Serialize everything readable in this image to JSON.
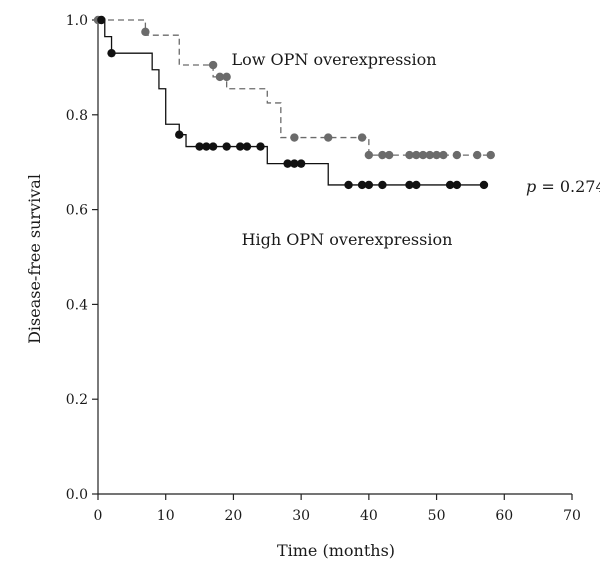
{
  "chart_data": {
    "type": "line",
    "subtype": "kaplan-meier",
    "title": "",
    "xlabel": "Time (months)",
    "ylabel": "Disease-free survival",
    "xlim": [
      0,
      70
    ],
    "ylim": [
      0,
      1.0
    ],
    "x_ticks": [
      0,
      10,
      20,
      30,
      40,
      50,
      60,
      70
    ],
    "y_ticks": [
      0.0,
      0.2,
      0.4,
      0.6,
      0.8,
      1.0
    ],
    "x_tick_labels": [
      "0",
      "10",
      "20",
      "30",
      "40",
      "50",
      "60",
      "70"
    ],
    "y_tick_labels": [
      "0.0",
      "0.2",
      "0.4",
      "0.6",
      "0.8",
      "1.0"
    ],
    "grid": false,
    "series": [
      {
        "name": "Low OPN overexpression",
        "color": "#6b6b6b",
        "line_style": "dashed",
        "step_x": [
          0,
          7,
          12,
          17,
          19,
          25,
          27,
          29,
          40,
          56,
          58
        ],
        "step_y": [
          1.0,
          0.968,
          0.905,
          0.88,
          0.855,
          0.825,
          0.752,
          0.752,
          0.715,
          0.715,
          0.715
        ],
        "censor_x": [
          0,
          7,
          17,
          18,
          19,
          29,
          34,
          39,
          40,
          42,
          43,
          46,
          47,
          48,
          49,
          50,
          51,
          53,
          56,
          58
        ],
        "censor_y": [
          1.0,
          0.975,
          0.905,
          0.88,
          0.88,
          0.752,
          0.752,
          0.752,
          0.715,
          0.715,
          0.715,
          0.715,
          0.715,
          0.715,
          0.715,
          0.715,
          0.715,
          0.715,
          0.715,
          0.715
        ]
      },
      {
        "name": "High OPN overexpression",
        "color": "#111111",
        "line_style": "solid",
        "step_x": [
          0,
          1,
          2,
          7,
          8,
          9,
          10,
          12,
          13,
          25,
          34,
          57
        ],
        "step_y": [
          1.0,
          0.965,
          0.93,
          0.93,
          0.895,
          0.855,
          0.78,
          0.758,
          0.733,
          0.697,
          0.652,
          0.652
        ],
        "censor_x": [
          0.5,
          2,
          12,
          15,
          16,
          17,
          19,
          21,
          22,
          24,
          28,
          29,
          30,
          37,
          39,
          40,
          42,
          46,
          47,
          52,
          53,
          57
        ],
        "censor_y": [
          1.0,
          0.93,
          0.758,
          0.733,
          0.733,
          0.733,
          0.733,
          0.733,
          0.733,
          0.733,
          0.697,
          0.697,
          0.697,
          0.652,
          0.652,
          0.652,
          0.652,
          0.652,
          0.652,
          0.652,
          0.652,
          0.652
        ]
      }
    ],
    "annotations": {
      "low_label": "Low OPN overexpression",
      "high_label": "High OPN overexpression",
      "p_symbol": "p",
      "p_rest": " = 0.274"
    }
  }
}
